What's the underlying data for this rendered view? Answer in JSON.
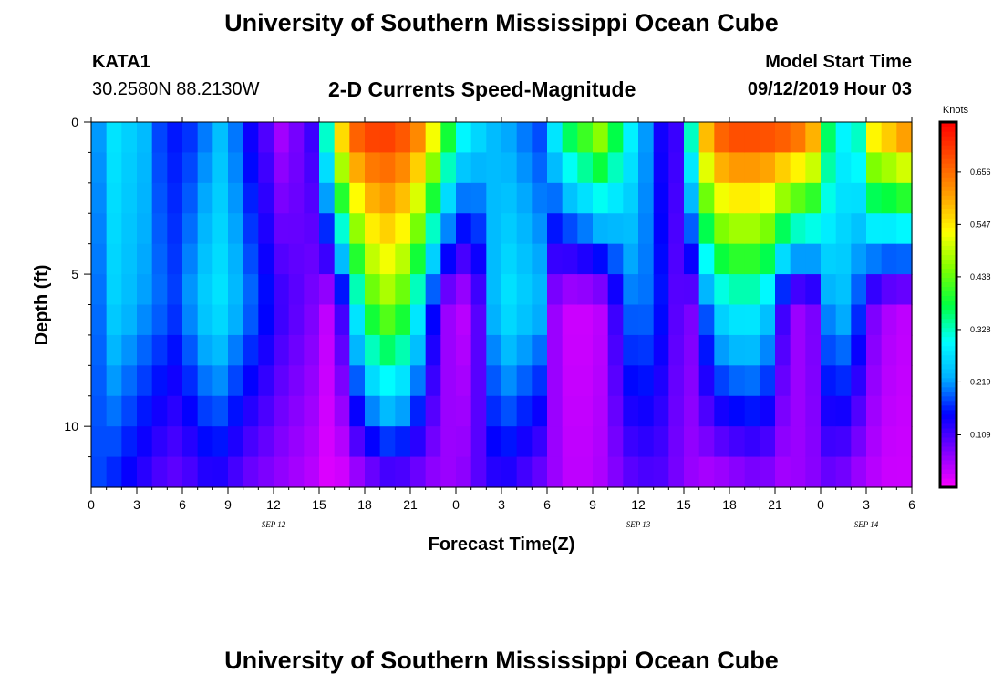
{
  "header": {
    "title_top": "University of Southern Mississippi Ocean Cube",
    "title_bottom": "University of Southern Mississippi Ocean Cube",
    "station_id": "KATA1",
    "station_coords": "30.2580N 88.2130W",
    "chart_title": "2-D Currents Speed-Magnitude",
    "model_start_label": "Model Start Time",
    "model_start_value": "09/12/2019 Hour 03"
  },
  "colorbar": {
    "unit": "Knots",
    "tick_labels": [
      "0.656",
      "0.547",
      "0.438",
      "0.328",
      "0.219",
      "0.109"
    ],
    "tick_values": [
      0.656,
      0.547,
      0.438,
      0.328,
      0.219,
      0.109
    ],
    "range": [
      0.0,
      0.76
    ],
    "colors": [
      "#ff00ff",
      "#8000ff",
      "#0000ff",
      "#00b0ff",
      "#00ffff",
      "#00ff40",
      "#80ff00",
      "#ffff00",
      "#ffa000",
      "#ff5000",
      "#ff0000"
    ]
  },
  "chart_data": {
    "type": "heatmap",
    "title": "2-D Currents Speed-Magnitude",
    "xlabel": "Forecast Time(Z)",
    "ylabel": "Depth (ft)",
    "x_ticks": [
      "0",
      "3",
      "6",
      "9",
      "12",
      "15",
      "18",
      "21",
      "0",
      "3",
      "6",
      "9",
      "12",
      "15",
      "18",
      "21",
      "0",
      "3",
      "6"
    ],
    "x_range_hours": [
      0,
      54
    ],
    "date_labels": [
      {
        "text": "SEP 12",
        "hour": 12
      },
      {
        "text": "SEP 13",
        "hour": 36
      },
      {
        "text": "SEP 14",
        "hour": 51
      }
    ],
    "y_ticks": [
      "0",
      "5",
      "10"
    ],
    "y_tick_values": [
      0,
      5,
      10
    ],
    "y_range": [
      0,
      12
    ],
    "depths_ft": [
      0.5,
      1.5,
      2.5,
      3.5,
      4.5,
      5.5,
      6.5,
      7.5,
      8.5,
      9.5,
      10.5,
      11.5
    ],
    "time_step_hours": 1,
    "speed_knots_profile": {
      "surface": [
        0.22,
        0.28,
        0.26,
        0.24,
        0.18,
        0.16,
        0.17,
        0.2,
        0.24,
        0.2,
        0.14,
        0.1,
        0.05,
        0.08,
        0.12,
        0.35,
        0.6,
        0.7,
        0.72,
        0.72,
        0.7,
        0.66,
        0.56,
        0.42,
        0.32,
        0.28,
        0.24,
        0.22,
        0.2,
        0.18,
        0.3,
        0.4,
        0.45,
        0.5,
        0.4,
        0.3,
        0.22,
        0.14,
        0.12,
        0.35,
        0.62,
        0.7,
        0.72,
        0.72,
        0.72,
        0.72,
        0.7,
        0.64,
        0.38,
        0.3,
        0.34,
        0.58,
        0.62,
        0.66,
        0.58
      ],
      "mid": [
        0.2,
        0.26,
        0.24,
        0.22,
        0.2,
        0.18,
        0.22,
        0.26,
        0.28,
        0.24,
        0.2,
        0.16,
        0.12,
        0.1,
        0.08,
        0.04,
        0.12,
        0.3,
        0.42,
        0.46,
        0.42,
        0.3,
        0.16,
        0.06,
        0.04,
        0.1,
        0.24,
        0.28,
        0.26,
        0.24,
        0.06,
        0.03,
        0.03,
        0.04,
        0.12,
        0.2,
        0.2,
        0.16,
        0.1,
        0.08,
        0.2,
        0.28,
        0.3,
        0.3,
        0.26,
        0.12,
        0.06,
        0.08,
        0.22,
        0.24,
        0.18,
        0.08,
        0.05,
        0.04,
        0.03
      ],
      "bottom": [
        0.18,
        0.16,
        0.14,
        0.12,
        0.1,
        0.09,
        0.1,
        0.12,
        0.12,
        0.1,
        0.08,
        0.07,
        0.06,
        0.05,
        0.04,
        0.02,
        0.02,
        0.04,
        0.06,
        0.08,
        0.08,
        0.07,
        0.06,
        0.06,
        0.07,
        0.1,
        0.12,
        0.12,
        0.1,
        0.08,
        0.06,
        0.04,
        0.04,
        0.05,
        0.07,
        0.09,
        0.1,
        0.1,
        0.08,
        0.06,
        0.04,
        0.04,
        0.05,
        0.06,
        0.06,
        0.05,
        0.06,
        0.07,
        0.08,
        0.07,
        0.05,
        0.04,
        0.03,
        0.03,
        0.03
      ]
    },
    "colorbar_unit": "Knots"
  }
}
